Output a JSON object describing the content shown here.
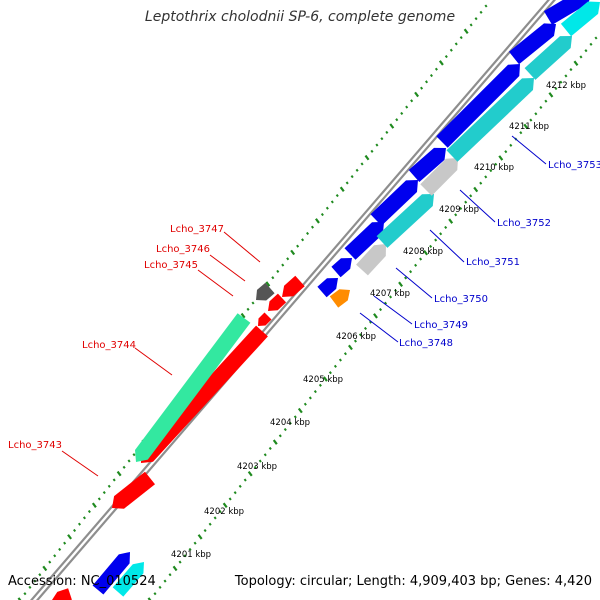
{
  "title": "Leptothrix cholodnii SP-6, complete genome",
  "footer": {
    "accession": "Accession: NC_010524",
    "summary": "Topology: circular; Length: 4,909,403 bp; Genes: 4,420"
  },
  "colors": {
    "background": "#ffffff",
    "backbone": "#8e8e8e",
    "ticks": "#1f8a1f",
    "left_labels": "#e00000",
    "right_labels": "#0000cc",
    "kbp_labels": "#000000"
  },
  "scale_labels": [
    "4201 kbp",
    "4202 kbp",
    "4203 kbp",
    "4204 kbp",
    "4205 kbp",
    "4206 kbp",
    "4207 kbp",
    "4208 kbp",
    "4209 kbp",
    "4210 kbp",
    "4211 kbp",
    "4212 kbp"
  ],
  "gene_labels_left": [
    "Lcho_3743",
    "Lcho_3744",
    "Lcho_3745",
    "Lcho_3746",
    "Lcho_3747"
  ],
  "gene_labels_right": [
    "Lcho_3748",
    "Lcho_3749",
    "Lcho_3750",
    "Lcho_3751",
    "Lcho_3752",
    "Lcho_3753"
  ],
  "features": [
    {
      "name": "red-gene-large",
      "color": "#ff0000",
      "strand": "reverse"
    },
    {
      "name": "green-gene",
      "color": "#33e8a0",
      "strand": "reverse"
    },
    {
      "name": "red-small-gene",
      "color": "#ff0000",
      "strand": "reverse"
    },
    {
      "name": "red-small-gene",
      "color": "#ff0000",
      "strand": "reverse"
    },
    {
      "name": "dark-gray-gene",
      "color": "#555555",
      "strand": "reverse"
    },
    {
      "name": "orange-gene",
      "color": "#ff8c00",
      "strand": "forward"
    },
    {
      "name": "blue-gene",
      "color": "#0000ee",
      "strand": "forward"
    },
    {
      "name": "blue-gene",
      "color": "#0000ee",
      "strand": "forward"
    },
    {
      "name": "blue-gene",
      "color": "#0000ee",
      "strand": "forward"
    },
    {
      "name": "blue-gene",
      "color": "#0000ee",
      "strand": "forward"
    },
    {
      "name": "blue-gene",
      "color": "#0000ee",
      "strand": "forward"
    },
    {
      "name": "blue-gene",
      "color": "#0000ee",
      "strand": "forward"
    },
    {
      "name": "light-gray-gene",
      "color": "#c8c8c8",
      "strand": "forward"
    },
    {
      "name": "cyan-gene",
      "color": "#22cccc",
      "strand": "forward"
    },
    {
      "name": "light-gray-gene",
      "color": "#c8c8c8",
      "strand": "forward"
    },
    {
      "name": "cyan-gene",
      "color": "#22cccc",
      "strand": "forward"
    },
    {
      "name": "cyan-gene",
      "color": "#22cccc",
      "strand": "forward"
    },
    {
      "name": "cyan-gene",
      "color": "#00e8e8",
      "strand": "forward"
    },
    {
      "name": "blue-gene",
      "color": "#0000ee",
      "strand": "forward"
    },
    {
      "name": "blue-gene",
      "color": "#0000ee",
      "strand": "forward"
    },
    {
      "name": "red-edge-gene",
      "color": "#ff0000",
      "strand": "reverse"
    }
  ]
}
